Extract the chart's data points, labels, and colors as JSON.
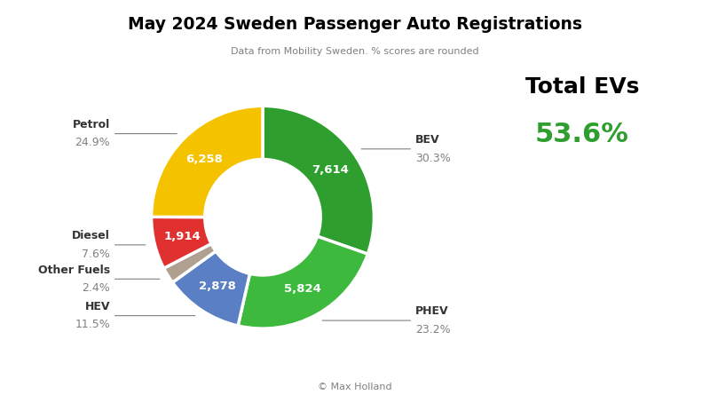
{
  "title": "May 2024 Sweden Passenger Auto Registrations",
  "subtitle": "Data from Mobility Sweden. % scores are rounded",
  "copyright": "© Max Holland",
  "total_evs_label": "Total EVs",
  "total_evs_value": "53.6%",
  "segments": [
    {
      "label": "BEV",
      "value": 7614,
      "pct": "30.3%",
      "color": "#2e9e2e",
      "side": "right"
    },
    {
      "label": "PHEV",
      "value": 5824,
      "pct": "23.2%",
      "color": "#3dba3d",
      "side": "right"
    },
    {
      "label": "HEV",
      "value": 2878,
      "pct": "11.5%",
      "color": "#5b7fc4",
      "side": "left"
    },
    {
      "label": "Other Fuels",
      "value": 598,
      "pct": "2.4%",
      "color": "#b0a090",
      "side": "left"
    },
    {
      "label": "Diesel",
      "value": 1914,
      "pct": "7.6%",
      "color": "#e03030",
      "side": "left"
    },
    {
      "label": "Petrol",
      "value": 6258,
      "pct": "24.9%",
      "color": "#f5c200",
      "side": "left"
    }
  ],
  "donut_width": 0.48,
  "label_fontsize": 9,
  "value_fontsize": 9.5,
  "figsize": [
    8.0,
    4.45
  ],
  "dpi": 100,
  "ev_green": "#2e9e2e"
}
